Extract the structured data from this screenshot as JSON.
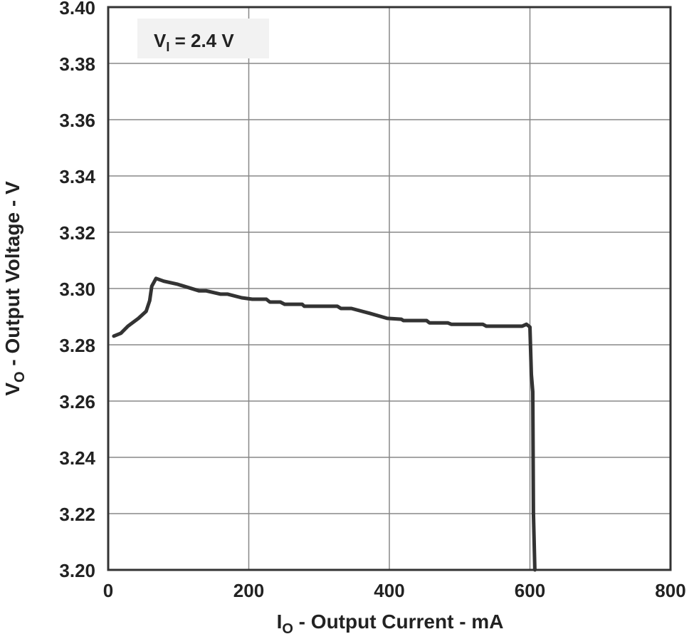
{
  "chart_data": {
    "type": "line",
    "title": "",
    "xlabel": {
      "main": "I",
      "sub": "O",
      "rest": " - Output Current - mA"
    },
    "ylabel": {
      "main": "V",
      "sub": "O",
      "rest": " - Output Voltage - V"
    },
    "annotation": {
      "main": "V",
      "sub": "I",
      "rest": " = 2.4 V"
    },
    "xlim": [
      0,
      800
    ],
    "ylim": [
      3.2,
      3.4
    ],
    "xticks": [
      "0",
      "200",
      "400",
      "600",
      "800"
    ],
    "yticks": [
      "3.20",
      "3.22",
      "3.24",
      "3.26",
      "3.28",
      "3.30",
      "3.32",
      "3.34",
      "3.36",
      "3.38",
      "3.40"
    ],
    "grid": true,
    "line_color": "#333333",
    "series": [
      {
        "x": [
          8,
          18,
          28,
          43,
          54,
          59,
          62,
          68,
          79,
          99,
          129,
          139,
          160,
          170,
          190,
          205,
          225,
          230,
          245,
          251,
          276,
          279,
          326,
          331,
          346,
          372,
          397,
          417,
          420,
          453,
          457,
          483,
          488,
          533,
          538,
          589,
          595,
          600,
          602,
          604,
          605,
          607
        ],
        "y": [
          3.2831,
          3.2841,
          3.2866,
          3.2894,
          3.2919,
          3.2957,
          3.3008,
          3.3036,
          3.3026,
          3.3015,
          3.2992,
          3.2992,
          3.298,
          3.298,
          3.2967,
          3.2962,
          3.2962,
          3.2952,
          3.2952,
          3.2944,
          3.2944,
          3.2937,
          3.2937,
          3.2929,
          3.2929,
          3.2912,
          3.2894,
          3.2891,
          3.2886,
          3.2886,
          3.2878,
          3.2878,
          3.2873,
          3.2873,
          3.2866,
          3.2866,
          3.2873,
          3.2863,
          3.2695,
          3.2633,
          3.2203,
          3.2
        ]
      }
    ]
  }
}
